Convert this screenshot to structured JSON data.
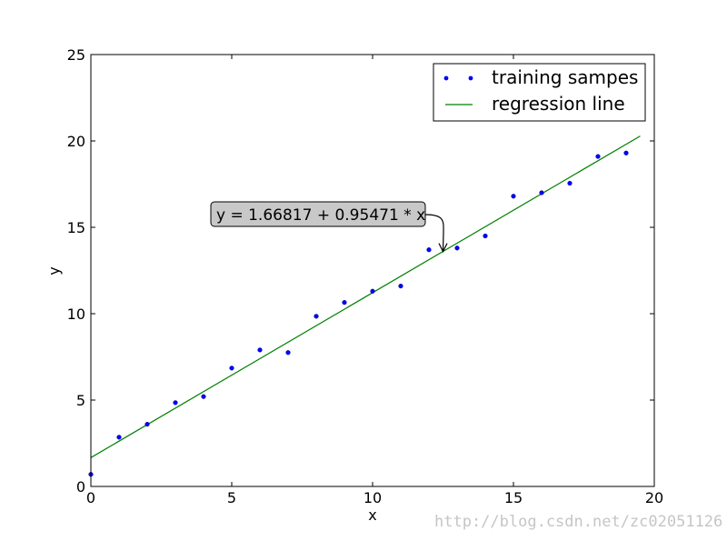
{
  "chart_data": {
    "type": "scatter",
    "xlabel": "x",
    "ylabel": "y",
    "xlim": [
      0,
      20
    ],
    "ylim": [
      0,
      25
    ],
    "xticks": [
      0,
      5,
      10,
      15,
      20
    ],
    "yticks": [
      0,
      5,
      10,
      15,
      20,
      25
    ],
    "grid": false,
    "legend_position": "top-right",
    "series": [
      {
        "name": "training sampes",
        "kind": "scatter",
        "color": "#0000ff",
        "x": [
          0,
          1,
          2,
          3,
          4,
          5,
          6,
          7,
          8,
          9,
          10,
          11,
          12,
          13,
          14,
          15,
          16,
          17,
          18,
          19
        ],
        "y": [
          0.7,
          2.85,
          3.6,
          4.85,
          5.2,
          6.85,
          7.9,
          7.75,
          9.85,
          10.65,
          11.3,
          11.6,
          13.7,
          13.8,
          14.5,
          16.8,
          17.0,
          17.55,
          19.1,
          19.3
        ]
      },
      {
        "name": "regression line",
        "kind": "line",
        "color": "#008000",
        "x": [
          0,
          19.5
        ],
        "y": [
          1.66817,
          20.28502
        ]
      }
    ],
    "annotations": [
      {
        "text": "y = 1.66817 + 0.95471 * x",
        "point": [
          12.5,
          13.6
        ]
      }
    ]
  },
  "watermark": "http://blog.csdn.net/zc02051126"
}
